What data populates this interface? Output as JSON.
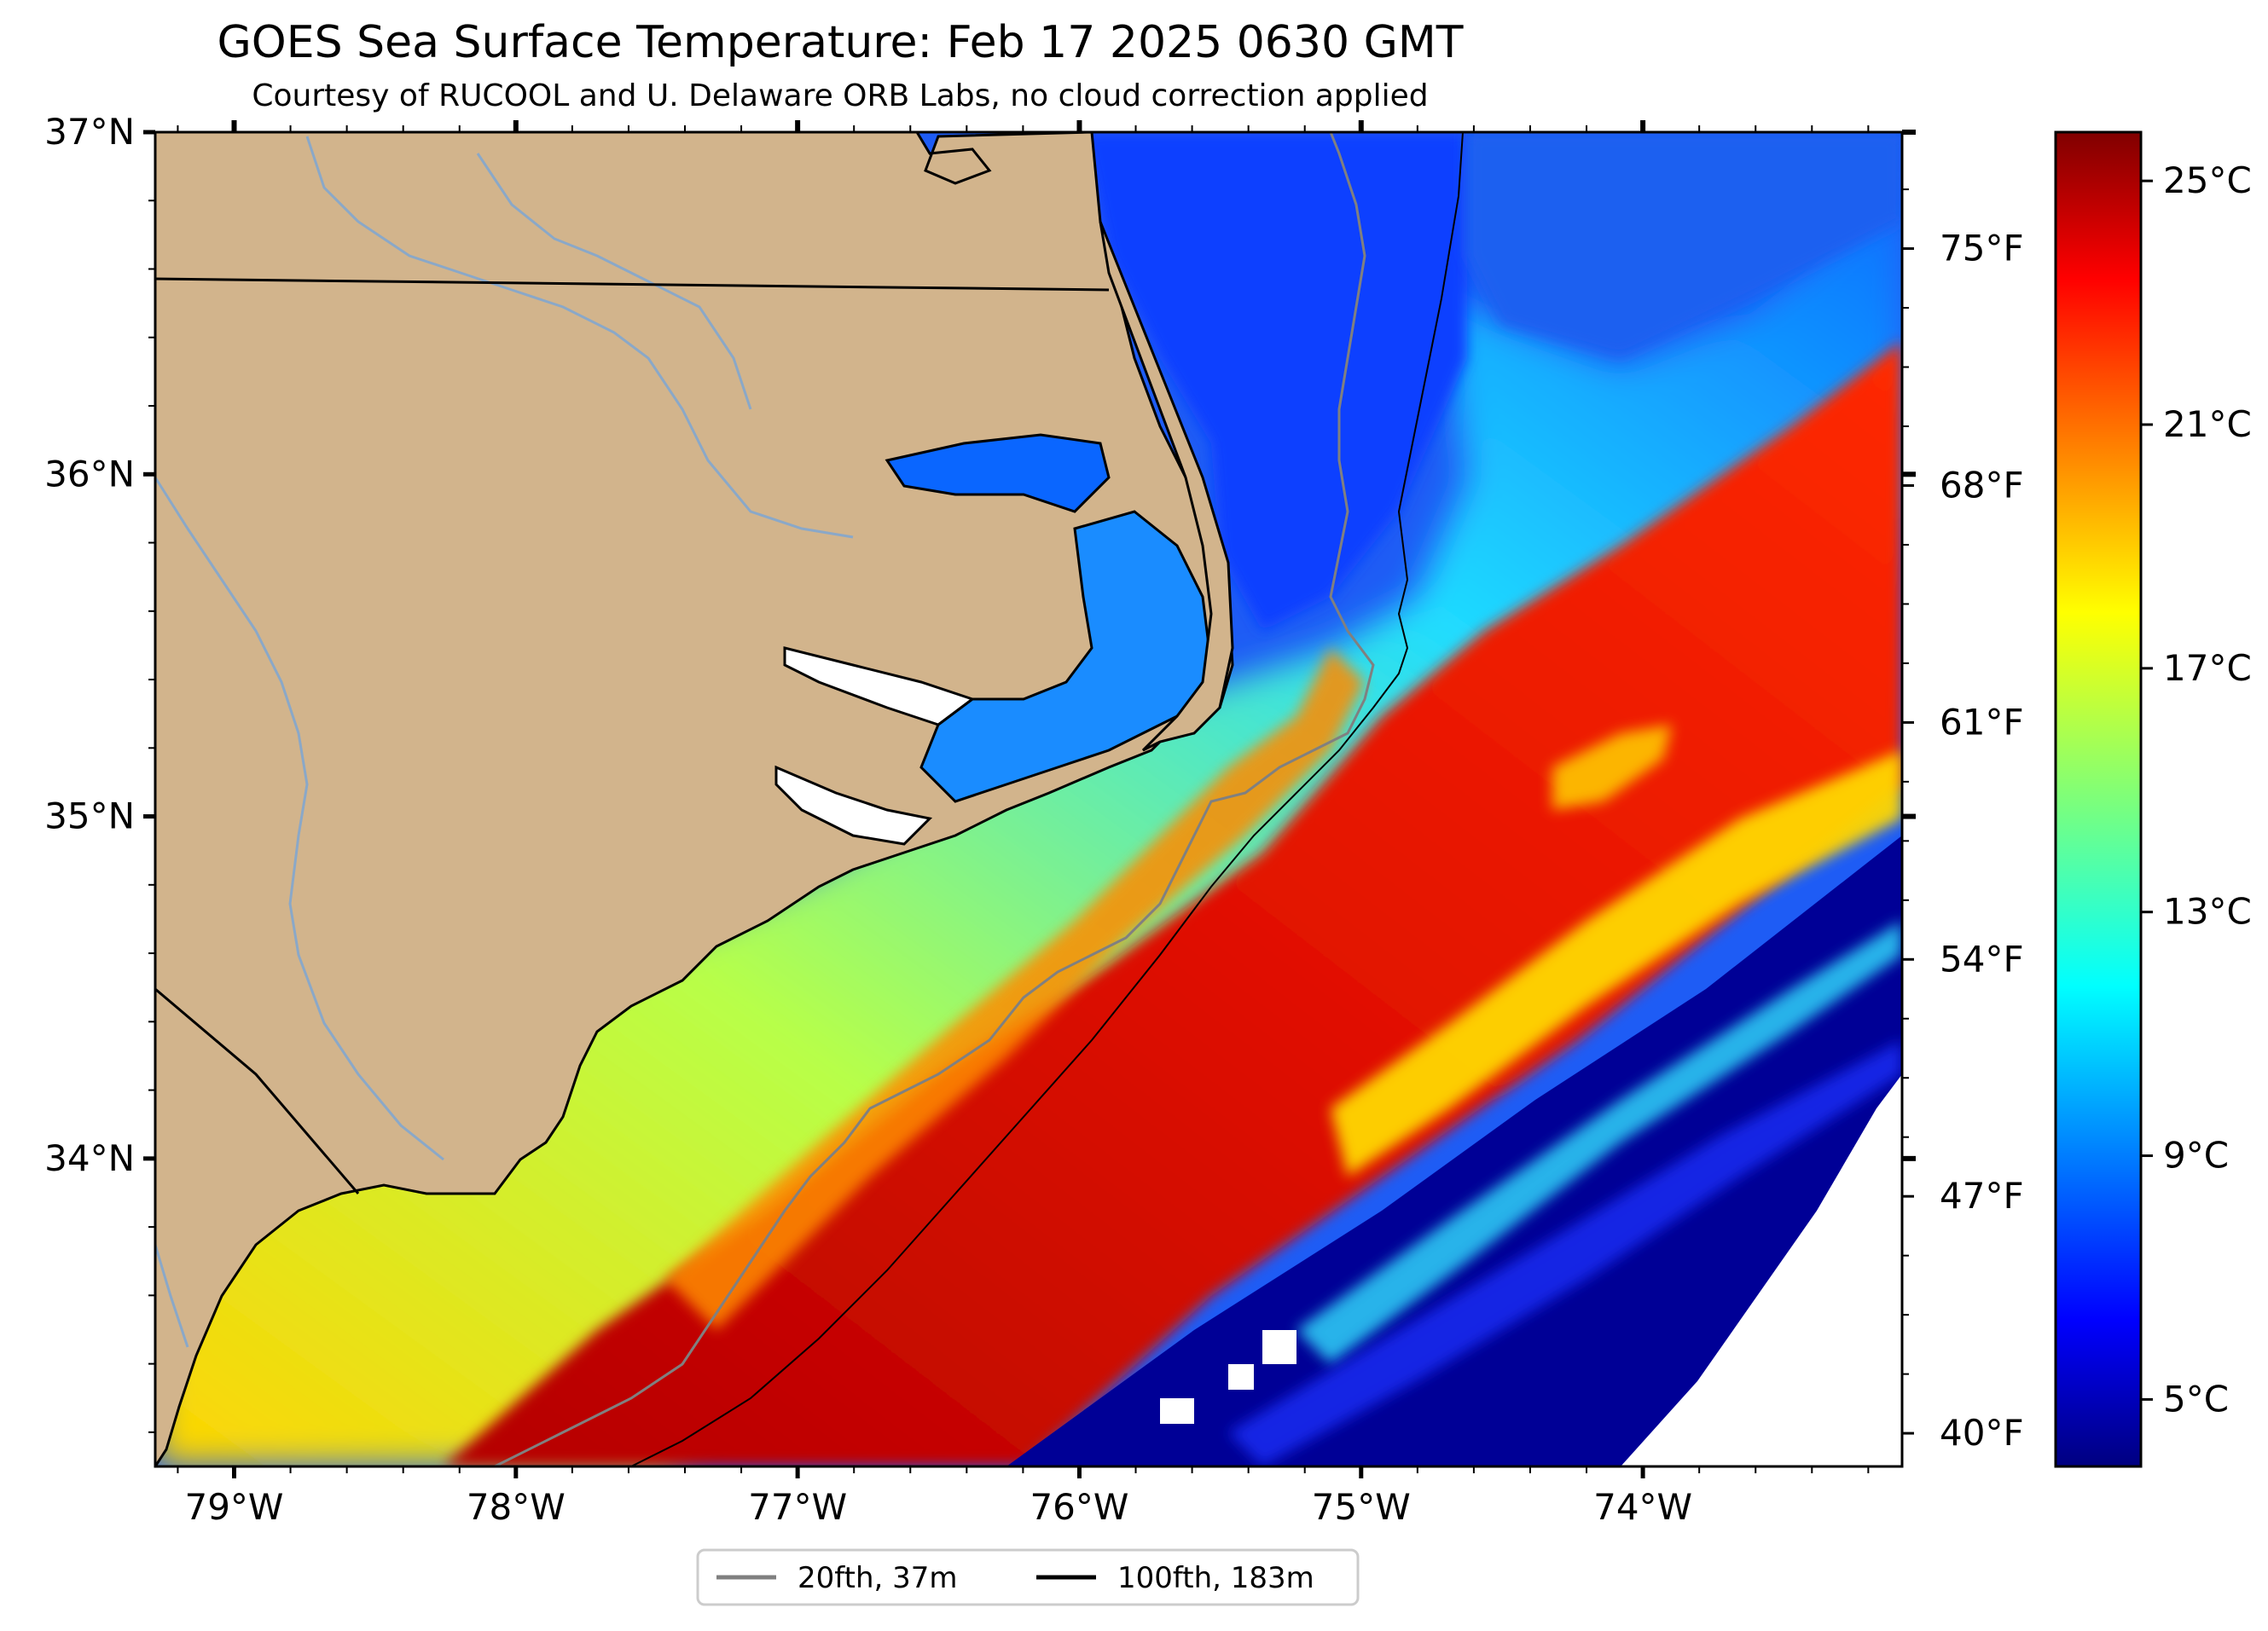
{
  "title": "GOES Sea Surface Temperature: Feb 17 2025 0630 GMT",
  "subtitle": "Courtesy of RUCOOL and U. Delaware ORB Labs, no cloud correction applied",
  "map": {
    "lon_range": [
      -79.28,
      -73.08
    ],
    "lat_range": [
      33.1,
      37.0
    ],
    "lat_ticks": [
      {
        "value": 37,
        "label": "37°N"
      },
      {
        "value": 36,
        "label": "36°N"
      },
      {
        "value": 35,
        "label": "35°N"
      },
      {
        "value": 34,
        "label": "34°N"
      }
    ],
    "lon_ticks": [
      {
        "value": -79,
        "label": "79°W"
      },
      {
        "value": -78,
        "label": "78°W"
      },
      {
        "value": -77,
        "label": "77°W"
      },
      {
        "value": -76,
        "label": "76°W"
      },
      {
        "value": -75,
        "label": "75°W"
      },
      {
        "value": -74,
        "label": "74°W"
      }
    ],
    "fahrenheit_ticks": [
      {
        "value": 75,
        "label": "75°F"
      },
      {
        "value": 68,
        "label": "68°F"
      },
      {
        "value": 61,
        "label": "61°F"
      },
      {
        "value": 54,
        "label": "54°F"
      },
      {
        "value": 47,
        "label": "47°F"
      },
      {
        "value": 40,
        "label": "40°F"
      }
    ],
    "land_color": "#d2b48c",
    "river_color": "#8aa8c8"
  },
  "colorbar": {
    "colormap": "jet",
    "range_c": [
      3.9,
      25.8
    ],
    "ticks": [
      {
        "value": 25,
        "label": "25°C"
      },
      {
        "value": 21,
        "label": "21°C"
      },
      {
        "value": 17,
        "label": "17°C"
      },
      {
        "value": 13,
        "label": "13°C"
      },
      {
        "value": 9,
        "label": "9°C"
      },
      {
        "value": 5,
        "label": "5°C"
      }
    ]
  },
  "legend": {
    "entries": [
      {
        "label": "20fth, 37m",
        "color": "#808080"
      },
      {
        "label": "100fth, 183m",
        "color": "#000000"
      }
    ]
  }
}
